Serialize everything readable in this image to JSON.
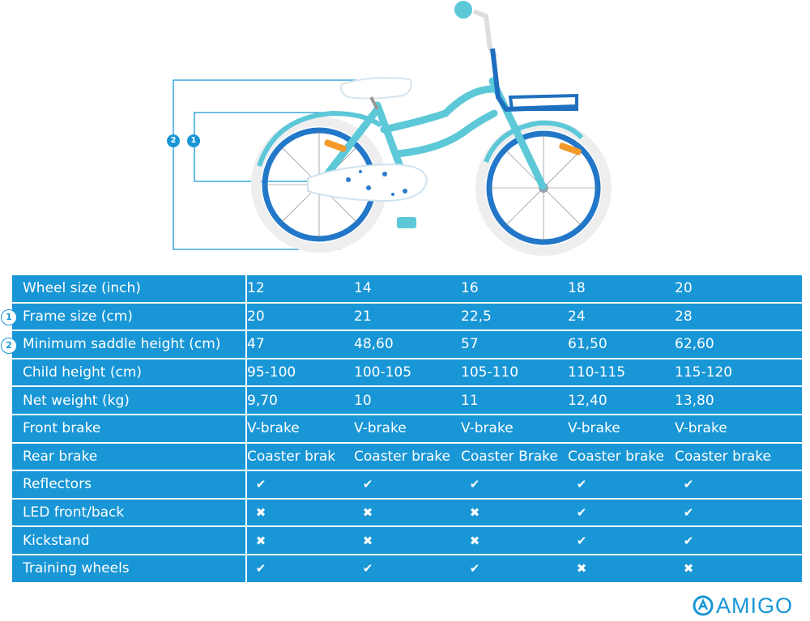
{
  "figure": {
    "badges": [
      "2",
      "1"
    ]
  },
  "table": {
    "rows": [
      {
        "label": "Wheel size (inch)",
        "badge": "",
        "values": [
          "12",
          "14",
          "16",
          "18",
          "20"
        ]
      },
      {
        "label": "Frame size (cm)",
        "badge": "1",
        "values": [
          "20",
          "21",
          "22,5",
          "24",
          "28"
        ]
      },
      {
        "label": "Minimum saddle height (cm)",
        "badge": "2",
        "values": [
          "47",
          "48,60",
          "57",
          "61,50",
          "62,60"
        ]
      },
      {
        "label": "Child height (cm)",
        "badge": "",
        "values": [
          "95-100",
          "100-105",
          "105-110",
          "110-115",
          "115-120"
        ]
      },
      {
        "label": "Net weight (kg)",
        "badge": "",
        "values": [
          "9,70",
          "10",
          "11",
          "12,40",
          "13,80"
        ]
      },
      {
        "label": "Front brake",
        "badge": "",
        "values": [
          "V-brake",
          "V-brake",
          "V-brake",
          "V-brake",
          "V-brake"
        ]
      },
      {
        "label": "Rear brake",
        "badge": "",
        "values": [
          "Coaster brak",
          "Coaster brake",
          "Coaster Brake",
          "Coaster brake",
          "Coaster brake"
        ]
      },
      {
        "label": "Reflectors",
        "badge": "",
        "icons": [
          "check-icon",
          "check-icon",
          "check-icon",
          "check-icon",
          "check-icon"
        ]
      },
      {
        "label": "LED front/back",
        "badge": "",
        "icons": [
          "cross-icon",
          "cross-icon",
          "cross-icon",
          "check-icon",
          "check-icon"
        ]
      },
      {
        "label": "Kickstand",
        "badge": "",
        "icons": [
          "cross-icon",
          "cross-icon",
          "cross-icon",
          "check-icon",
          "check-icon"
        ]
      },
      {
        "label": "Training wheels",
        "badge": "",
        "icons": [
          "check-icon",
          "check-icon",
          "check-icon",
          "cross-icon",
          "cross-icon"
        ]
      }
    ]
  },
  "logo": {
    "text": "AMIGO"
  },
  "colors": {
    "accent": "#1896d6",
    "frame": "#5cc8d8",
    "rim": "#2277c8",
    "tire": "#f2f2f2",
    "text_on_accent": "#ffffff"
  }
}
